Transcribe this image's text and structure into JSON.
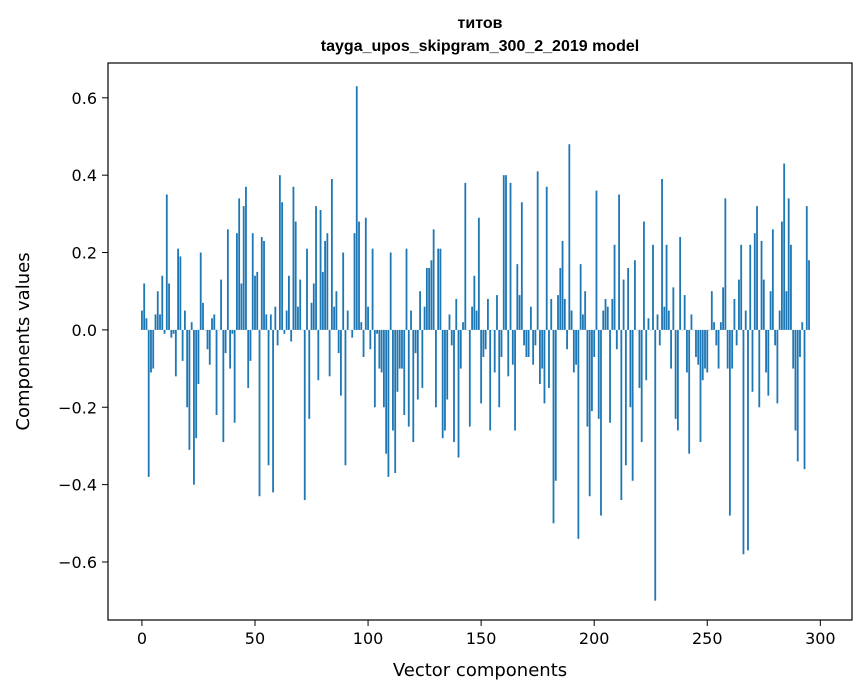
{
  "chart_data": {
    "type": "bar",
    "title": "титов",
    "subtitle": "tayga_upos_skipgram_300_2_2019 model",
    "xlabel": "Vector components",
    "ylabel": "Components values",
    "xlim": [
      -15,
      314
    ],
    "ylim": [
      -0.75,
      0.69
    ],
    "xticks": [
      0,
      50,
      100,
      150,
      200,
      250,
      300
    ],
    "xtick_labels": [
      "0",
      "50",
      "100",
      "150",
      "200",
      "250",
      "300"
    ],
    "yticks": [
      -0.6,
      -0.4,
      -0.2,
      0.0,
      0.2,
      0.4,
      0.6
    ],
    "ytick_labels": [
      "−0.6",
      "−0.4",
      "−0.2",
      "0.0",
      "0.2",
      "0.4",
      "0.6"
    ],
    "bar_color": "#1f77b4",
    "values": [
      0.05,
      0.12,
      0.03,
      -0.38,
      -0.11,
      -0.1,
      0.04,
      0.1,
      0.04,
      0.14,
      -0.01,
      0.35,
      0.12,
      -0.02,
      -0.01,
      -0.12,
      0.21,
      0.19,
      -0.08,
      0.05,
      -0.2,
      -0.31,
      0.02,
      -0.4,
      -0.28,
      -0.14,
      0.2,
      0.07,
      0.0,
      -0.05,
      -0.09,
      0.03,
      0.04,
      -0.22,
      0.0,
      0.13,
      -0.29,
      -0.06,
      0.26,
      -0.1,
      -0.01,
      -0.24,
      0.25,
      0.34,
      0.12,
      0.32,
      0.37,
      -0.15,
      -0.08,
      0.25,
      0.14,
      0.15,
      -0.43,
      0.24,
      0.23,
      0.04,
      -0.35,
      0.04,
      -0.42,
      0.06,
      -0.04,
      0.4,
      0.33,
      -0.01,
      0.05,
      0.14,
      -0.03,
      0.37,
      0.28,
      0.06,
      0.13,
      0.0,
      -0.44,
      0.21,
      -0.23,
      0.07,
      0.12,
      0.32,
      -0.13,
      0.31,
      0.15,
      0.23,
      0.25,
      -0.12,
      0.39,
      0.06,
      0.1,
      -0.06,
      -0.17,
      0.2,
      -0.35,
      0.05,
      0.0,
      -0.02,
      0.25,
      0.63,
      0.28,
      0.02,
      -0.07,
      0.29,
      0.06,
      -0.05,
      0.21,
      -0.2,
      -0.01,
      -0.1,
      -0.11,
      -0.2,
      -0.32,
      -0.38,
      0.2,
      -0.26,
      -0.37,
      -0.16,
      -0.1,
      -0.1,
      -0.22,
      0.21,
      -0.25,
      0.05,
      -0.29,
      -0.06,
      -0.18,
      0.1,
      -0.15,
      0.06,
      0.16,
      0.16,
      0.18,
      0.26,
      -0.2,
      0.21,
      0.21,
      -0.28,
      -0.26,
      -0.18,
      0.04,
      -0.04,
      -0.29,
      0.08,
      -0.33,
      -0.1,
      0.02,
      0.38,
      0.0,
      -0.25,
      0.06,
      0.14,
      0.05,
      0.29,
      -0.19,
      -0.07,
      -0.05,
      0.08,
      -0.26,
      0.0,
      -0.11,
      0.09,
      -0.2,
      -0.07,
      0.4,
      0.4,
      -0.12,
      0.38,
      -0.09,
      -0.26,
      0.17,
      0.09,
      0.33,
      -0.04,
      -0.07,
      -0.07,
      0.06,
      -0.09,
      -0.04,
      0.41,
      -0.14,
      -0.1,
      -0.19,
      0.37,
      -0.15,
      0.08,
      -0.5,
      -0.39,
      0.09,
      0.16,
      0.23,
      0.08,
      -0.05,
      0.48,
      0.05,
      -0.11,
      -0.09,
      -0.54,
      0.17,
      0.04,
      0.1,
      -0.25,
      -0.43,
      -0.21,
      -0.07,
      0.36,
      -0.23,
      -0.48,
      0.05,
      0.08,
      0.06,
      -0.24,
      0.08,
      0.22,
      -0.05,
      0.35,
      -0.44,
      0.13,
      -0.35,
      0.16,
      -0.2,
      -0.39,
      0.18,
      0.0,
      -0.15,
      -0.29,
      0.28,
      -0.13,
      0.03,
      0.0,
      0.22,
      -0.7,
      0.04,
      -0.04,
      0.39,
      0.06,
      0.22,
      0.05,
      -0.1,
      0.11,
      -0.23,
      -0.26,
      0.24,
      0.0,
      0.09,
      -0.11,
      -0.32,
      0.04,
      0.0,
      -0.07,
      -0.09,
      -0.29,
      -0.13,
      -0.1,
      -0.11,
      0.0,
      0.1,
      0.02,
      -0.04,
      -0.1,
      0.02,
      0.11,
      0.34,
      -0.1,
      -0.48,
      -0.1,
      0.08,
      -0.04,
      0.13,
      0.22,
      -0.58,
      0.05,
      -0.57,
      0.22,
      -0.16,
      0.25,
      0.32,
      -0.2,
      0.23,
      0.13,
      -0.11,
      -0.17,
      0.1,
      0.26,
      -0.04,
      -0.19,
      0.05,
      0.28,
      0.43,
      0.1,
      0.34,
      0.22,
      -0.1,
      -0.26,
      -0.34,
      -0.07,
      0.02,
      -0.36,
      0.32,
      0.18
    ]
  }
}
